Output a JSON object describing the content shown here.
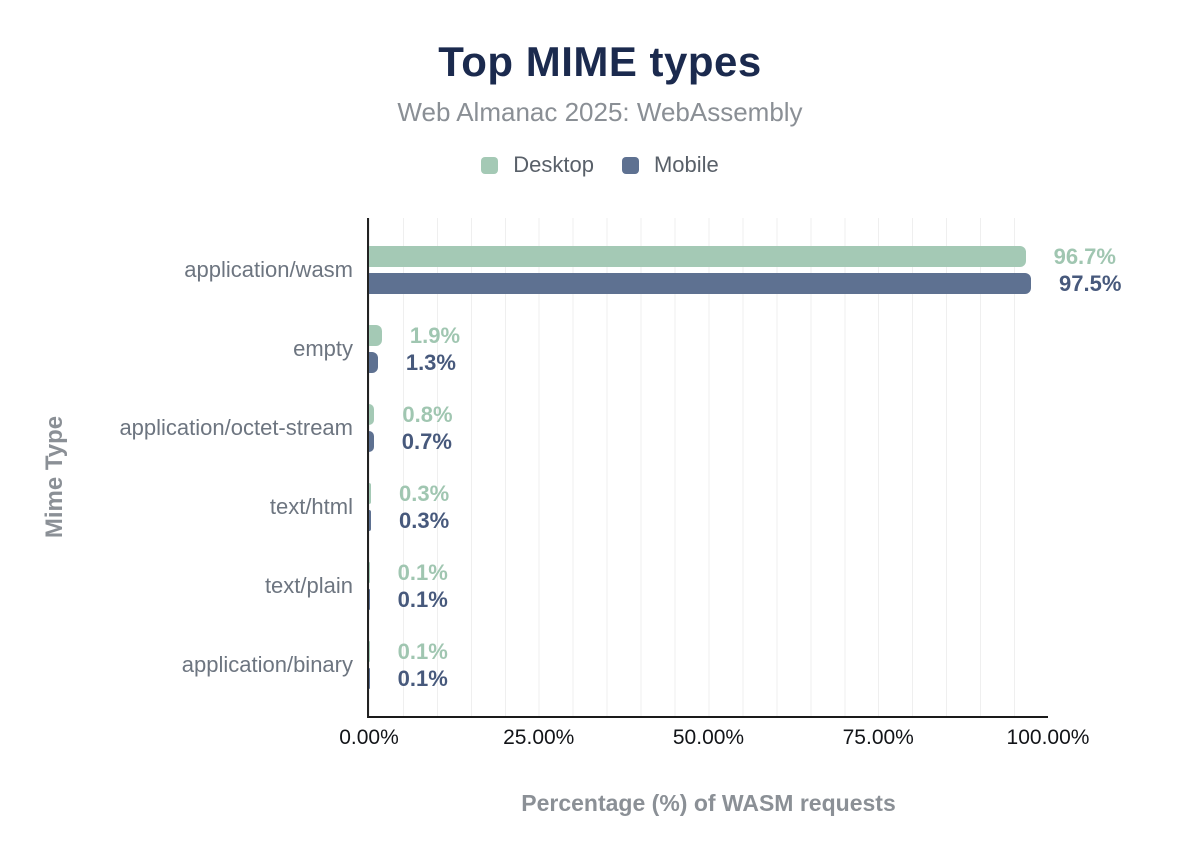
{
  "chart_data": {
    "type": "bar",
    "orientation": "horizontal",
    "title": "Top MIME types",
    "subtitle": "Web Almanac 2025: WebAssembly",
    "xlabel": "Percentage (%) of WASM requests",
    "ylabel": "Mime Type",
    "xlim": [
      0,
      100
    ],
    "xticks": [
      "0.00%",
      "25.00%",
      "50.00%",
      "75.00%",
      "100.00%"
    ],
    "grid": "vertical gridlines every 5%",
    "legend_position": "top-center",
    "categories": [
      "application/wasm",
      "empty",
      "application/octet-stream",
      "text/html",
      "text/plain",
      "application/binary"
    ],
    "series": [
      {
        "name": "Desktop",
        "color": "#a4c9b5",
        "label_color": "#a0c6b1",
        "values": [
          96.7,
          1.9,
          0.8,
          0.3,
          0.1,
          0.1
        ],
        "labels": [
          "96.7%",
          "1.9%",
          "0.8%",
          "0.3%",
          "0.1%",
          "0.1%"
        ]
      },
      {
        "name": "Mobile",
        "color": "#5e7191",
        "label_color": "#47597c",
        "values": [
          97.5,
          1.3,
          0.7,
          0.3,
          0.1,
          0.1
        ],
        "labels": [
          "97.5%",
          "1.3%",
          "0.7%",
          "0.3%",
          "0.1%",
          "0.1%"
        ]
      }
    ]
  },
  "colors": {
    "title": "#1b2a4e",
    "subtitle": "#8a8f95",
    "legend_label": "#596069",
    "category_label": "#6d7580",
    "tick_label": "#121418",
    "axis_title": "#8b9096",
    "axis_line": "#222222",
    "gridline": "#efefef",
    "background": "#ffffff"
  }
}
